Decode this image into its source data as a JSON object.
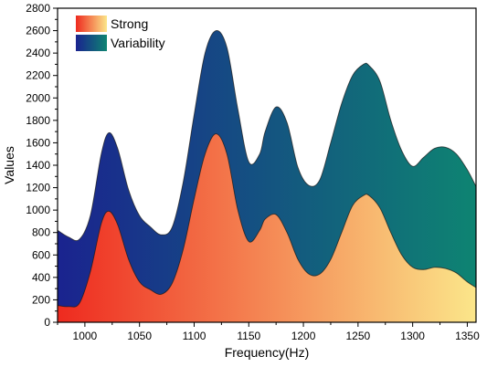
{
  "chart_data": {
    "type": "area",
    "xlabel": "Frequency(Hz)",
    "ylabel": "Values",
    "xlim": [
      975,
      1358
    ],
    "ylim": [
      0,
      2800
    ],
    "xticks": [
      1000,
      1050,
      1100,
      1150,
      1200,
      1250,
      1300,
      1350
    ],
    "yticks": [
      0,
      200,
      400,
      600,
      800,
      1000,
      1200,
      1400,
      1600,
      1800,
      2000,
      2200,
      2400,
      2600,
      2800
    ],
    "grid": false,
    "legend_position": "top-left",
    "x": [
      975,
      985,
      995,
      1005,
      1015,
      1022,
      1030,
      1040,
      1050,
      1060,
      1070,
      1080,
      1090,
      1100,
      1110,
      1120,
      1130,
      1140,
      1150,
      1160,
      1165,
      1175,
      1185,
      1195,
      1205,
      1215,
      1225,
      1235,
      1245,
      1255,
      1260,
      1270,
      1280,
      1290,
      1300,
      1310,
      1320,
      1330,
      1340,
      1350,
      1358
    ],
    "series": [
      {
        "name": "Strong",
        "gradient": [
          "#ee2a1f",
          "#fbe68a"
        ],
        "values": [
          150,
          140,
          170,
          450,
          880,
          990,
          870,
          560,
          360,
          290,
          250,
          350,
          650,
          1100,
          1500,
          1680,
          1500,
          1000,
          720,
          820,
          920,
          960,
          800,
          560,
          430,
          430,
          560,
          800,
          1040,
          1130,
          1130,
          1020,
          800,
          600,
          490,
          470,
          490,
          480,
          440,
          360,
          310
        ]
      },
      {
        "name": "Variability",
        "gradient": [
          "#1a238f",
          "#0e8472"
        ],
        "values": [
          820,
          760,
          740,
          950,
          1500,
          1690,
          1550,
          1180,
          950,
          850,
          780,
          850,
          1250,
          1850,
          2400,
          2600,
          2450,
          1900,
          1430,
          1500,
          1700,
          1920,
          1780,
          1380,
          1220,
          1270,
          1600,
          1950,
          2200,
          2300,
          2290,
          2150,
          1800,
          1530,
          1390,
          1470,
          1550,
          1560,
          1500,
          1360,
          1210
        ]
      }
    ]
  }
}
